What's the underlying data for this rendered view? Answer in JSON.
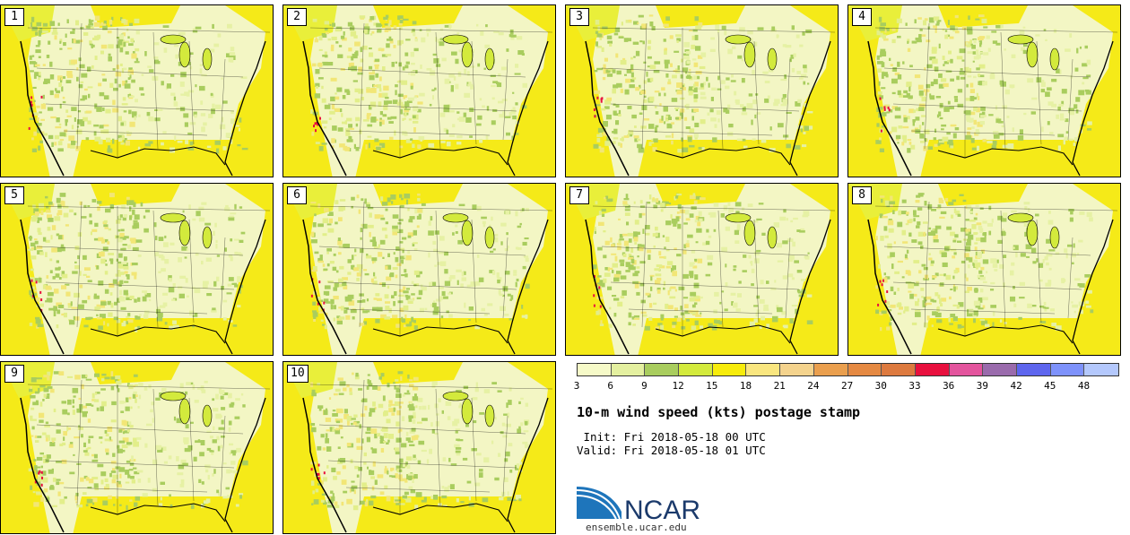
{
  "panels": [
    {
      "label": "1"
    },
    {
      "label": "2"
    },
    {
      "label": "3"
    },
    {
      "label": "4"
    },
    {
      "label": "5"
    },
    {
      "label": "6"
    },
    {
      "label": "7"
    },
    {
      "label": "8"
    },
    {
      "label": "9"
    },
    {
      "label": "10"
    }
  ],
  "colorbar": {
    "colors": [
      "#f6fac8",
      "#e4f0a0",
      "#a9cd5e",
      "#d3ea3c",
      "#f7ec0b",
      "#f9e67f",
      "#f4d38d",
      "#ea9f4e",
      "#e58942",
      "#dd7a3f",
      "#e8103e",
      "#e3549d",
      "#9a6bac",
      "#5e66ee",
      "#7e92fb",
      "#b4c8fc"
    ],
    "ticks": [
      "3",
      "6",
      "9",
      "12",
      "15",
      "18",
      "21",
      "24",
      "27",
      "30",
      "33",
      "36",
      "39",
      "42",
      "45",
      "48"
    ]
  },
  "title": "10-m wind speed (kts) postage stamp",
  "init_line": " Init: Fri 2018-05-18 00 UTC",
  "valid_line": "Valid: Fri 2018-05-18 01 UTC",
  "logo": {
    "text": "NCAR",
    "url": "ensemble.ucar.edu"
  }
}
